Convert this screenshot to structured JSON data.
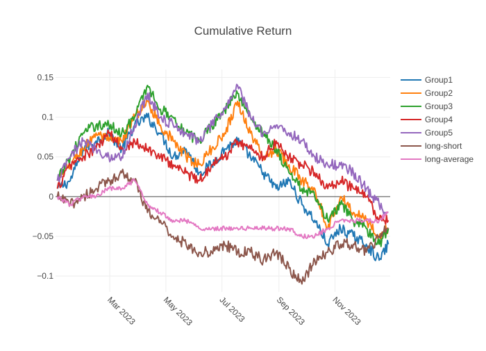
{
  "chart_data": {
    "type": "line",
    "title": "Cumulative Return",
    "xlabel": "",
    "ylabel": "",
    "xlim": [
      "2023-01-01",
      "2023-12-31"
    ],
    "ylim": [
      -0.12,
      0.16
    ],
    "grid": true,
    "legend_position": "right",
    "x_ticks": [
      {
        "date": "2023-03-01",
        "label": "Mar 2023"
      },
      {
        "date": "2023-05-01",
        "label": "May 2023"
      },
      {
        "date": "2023-07-01",
        "label": "Jul 2023"
      },
      {
        "date": "2023-09-01",
        "label": "Sep 2023"
      },
      {
        "date": "2023-11-01",
        "label": "Nov 2023"
      }
    ],
    "y_ticks": [
      {
        "value": 0.15,
        "label": "0.15"
      },
      {
        "value": 0.1,
        "label": "0.1"
      },
      {
        "value": 0.05,
        "label": "0.05"
      },
      {
        "value": 0,
        "label": "0"
      },
      {
        "value": -0.05,
        "label": "−0.05"
      },
      {
        "value": -0.1,
        "label": "−0.1"
      }
    ],
    "x": [
      "2023-01-03",
      "2023-01-17",
      "2023-01-31",
      "2023-02-14",
      "2023-02-28",
      "2023-03-14",
      "2023-03-28",
      "2023-04-11",
      "2023-04-25",
      "2023-05-09",
      "2023-05-23",
      "2023-06-06",
      "2023-06-20",
      "2023-07-04",
      "2023-07-18",
      "2023-08-01",
      "2023-08-15",
      "2023-08-29",
      "2023-09-12",
      "2023-09-26",
      "2023-10-10",
      "2023-10-24",
      "2023-11-07",
      "2023-11-21",
      "2023-12-05",
      "2023-12-19",
      "2023-12-29"
    ],
    "series": [
      {
        "name": "Group1",
        "color": "#1f77b4",
        "values": [
          0.01,
          0.02,
          0.06,
          0.07,
          0.08,
          0.06,
          0.09,
          0.1,
          0.08,
          0.05,
          0.06,
          0.03,
          0.04,
          0.06,
          0.07,
          0.05,
          0.03,
          0.01,
          0.02,
          -0.01,
          -0.03,
          -0.06,
          -0.04,
          -0.05,
          -0.06,
          -0.08,
          -0.06
        ]
      },
      {
        "name": "Group2",
        "color": "#ff7f0e",
        "values": [
          0.02,
          0.04,
          0.06,
          0.08,
          0.07,
          0.07,
          0.1,
          0.12,
          0.09,
          0.07,
          0.05,
          0.04,
          0.06,
          0.08,
          0.12,
          0.08,
          0.05,
          0.06,
          0.04,
          0.02,
          0.01,
          -0.04,
          0.0,
          -0.02,
          -0.03,
          -0.05,
          -0.04
        ]
      },
      {
        "name": "Group3",
        "color": "#2ca02c",
        "values": [
          0.02,
          0.05,
          0.08,
          0.09,
          0.09,
          0.08,
          0.1,
          0.14,
          0.11,
          0.1,
          0.08,
          0.07,
          0.09,
          0.11,
          0.13,
          0.1,
          0.08,
          0.06,
          0.03,
          0.01,
          0.0,
          -0.03,
          -0.01,
          -0.03,
          -0.04,
          -0.06,
          -0.04
        ]
      },
      {
        "name": "Group4",
        "color": "#d62728",
        "values": [
          0.01,
          0.04,
          0.05,
          0.06,
          0.08,
          0.06,
          0.07,
          0.06,
          0.05,
          0.04,
          0.03,
          0.02,
          0.04,
          0.05,
          0.07,
          0.06,
          0.05,
          0.07,
          0.05,
          0.04,
          0.03,
          0.01,
          0.02,
          0.01,
          0.0,
          -0.03,
          -0.03
        ]
      },
      {
        "name": "Group5",
        "color": "#9467bd",
        "values": [
          0.02,
          0.05,
          0.07,
          0.06,
          0.05,
          0.05,
          0.09,
          0.13,
          0.1,
          0.09,
          0.08,
          0.07,
          0.09,
          0.11,
          0.14,
          0.1,
          0.08,
          0.09,
          0.08,
          0.07,
          0.05,
          0.04,
          0.04,
          0.03,
          0.01,
          -0.01,
          -0.02
        ]
      },
      {
        "name": "long-short",
        "color": "#8c564b",
        "values": [
          0.0,
          -0.01,
          0.0,
          0.01,
          0.02,
          0.03,
          0.02,
          -0.02,
          -0.03,
          -0.05,
          -0.06,
          -0.07,
          -0.07,
          -0.06,
          -0.07,
          -0.07,
          -0.08,
          -0.07,
          -0.09,
          -0.11,
          -0.08,
          -0.07,
          -0.06,
          -0.06,
          -0.07,
          -0.05,
          -0.04
        ]
      },
      {
        "name": "long-average",
        "color": "#e377c2",
        "values": [
          0.0,
          -0.01,
          0.0,
          0.0,
          0.01,
          0.01,
          0.02,
          -0.01,
          -0.02,
          -0.03,
          -0.03,
          -0.04,
          -0.04,
          -0.04,
          -0.04,
          -0.04,
          -0.04,
          -0.04,
          -0.04,
          -0.05,
          -0.05,
          -0.04,
          -0.03,
          -0.03,
          -0.03,
          -0.03,
          -0.02
        ]
      }
    ]
  }
}
